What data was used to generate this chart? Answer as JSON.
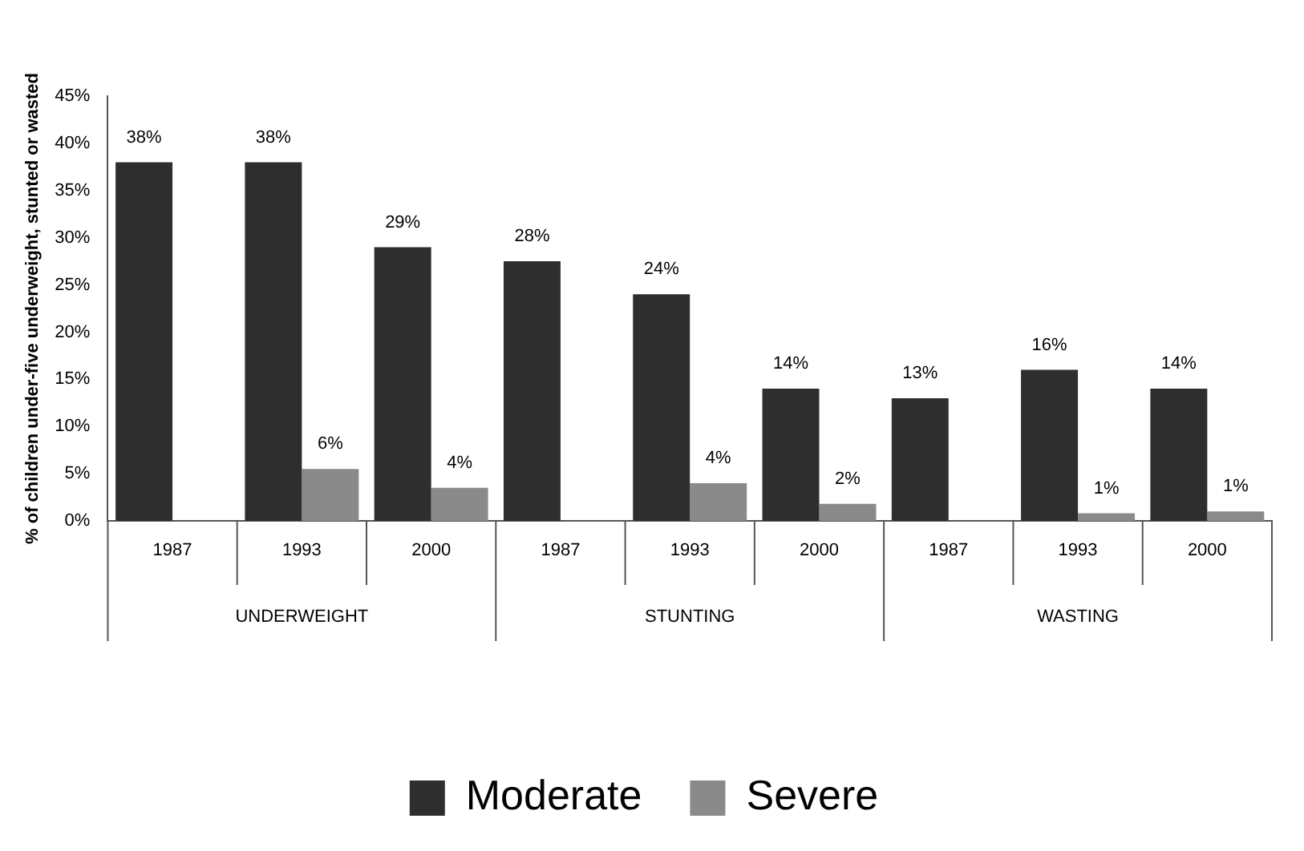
{
  "chart_data": {
    "type": "bar",
    "ylabel": "% of children under-five underweight, stunted or wasted",
    "categories": [
      "1987",
      "1993",
      "2000",
      "1987",
      "1993",
      "2000",
      "1987",
      "1993",
      "2000"
    ],
    "annotations": [
      "UNDERWEIGHT",
      "STUNTING",
      "WASTING"
    ],
    "series": [
      {
        "name": "Moderate",
        "color": "#2e2e2e",
        "values": [
          38,
          38,
          29,
          27.5,
          24,
          14,
          13,
          16,
          14
        ],
        "value_labels": [
          "38%",
          "38%",
          "29%",
          "28%",
          "24%",
          "14%",
          "13%",
          "16%",
          "14%"
        ]
      },
      {
        "name": "Severe",
        "color": "#8a8a8a",
        "values": [
          null,
          5.5,
          3.5,
          null,
          4,
          1.8,
          null,
          0.8,
          1
        ],
        "value_labels": [
          null,
          "6%",
          "4%",
          null,
          "4%",
          "2%",
          null,
          "1%",
          "1%"
        ]
      }
    ],
    "ylim": [
      0,
      45
    ],
    "yticks": [
      {
        "value": 0,
        "label": "0%"
      },
      {
        "value": 5,
        "label": "5%"
      },
      {
        "value": 10,
        "label": "10%"
      },
      {
        "value": 15,
        "label": "15%"
      },
      {
        "value": 20,
        "label": "20%"
      },
      {
        "value": 25,
        "label": "25%"
      },
      {
        "value": 30,
        "label": "30%"
      },
      {
        "value": 35,
        "label": "35%"
      },
      {
        "value": 40,
        "label": "40%"
      },
      {
        "value": 45,
        "label": "45%"
      }
    ],
    "grid": false,
    "legend": "bottom"
  }
}
